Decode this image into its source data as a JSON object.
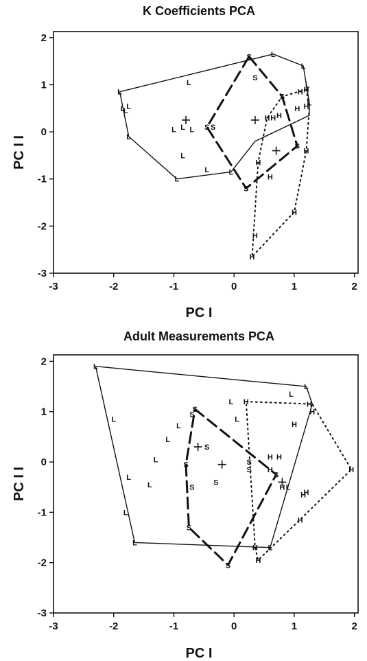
{
  "chart_data": [
    {
      "type": "scatter",
      "title": "K Coefficients PCA",
      "xlabel": "PC  I",
      "ylabel": "PC  I I",
      "xlim": [
        -3,
        2
      ],
      "ylim": [
        -3,
        2
      ],
      "xticks": [
        "-3",
        "-2",
        "-1",
        "0",
        "1",
        "2"
      ],
      "yticks": [
        "2",
        "1",
        "0",
        "-1",
        "-2",
        "-3"
      ],
      "series": [
        {
          "marker": "L",
          "line_style": "solid",
          "points": [
            [
              0.65,
              1.65
            ],
            [
              1.15,
              1.4
            ],
            [
              -0.75,
              1.05
            ],
            [
              -1.9,
              0.85
            ],
            [
              -1.75,
              0.55
            ],
            [
              -1.8,
              0.45
            ],
            [
              -1.85,
              0.5
            ],
            [
              1.22,
              1.0
            ],
            [
              1.25,
              0.62
            ],
            [
              -1.75,
              -0.1
            ],
            [
              -1.0,
              0.05
            ],
            [
              -0.85,
              0.1
            ],
            [
              -0.7,
              0.05
            ],
            [
              -0.85,
              -0.5
            ],
            [
              -0.95,
              -1.0
            ],
            [
              -0.45,
              -0.8
            ],
            [
              -0.05,
              -0.85
            ]
          ],
          "hull": [
            [
              -1.9,
              0.85
            ],
            [
              0.65,
              1.65
            ],
            [
              1.15,
              1.4
            ],
            [
              1.25,
              0.62
            ],
            [
              1.25,
              0.35
            ],
            [
              0.35,
              -0.2
            ],
            [
              -0.05,
              -0.85
            ],
            [
              -0.95,
              -1.0
            ],
            [
              -1.75,
              -0.1
            ],
            [
              -1.9,
              0.85
            ]
          ],
          "centroid": [
            -0.8,
            0.25
          ]
        },
        {
          "marker": "S",
          "line_style": "dashed",
          "points": [
            [
              0.25,
              1.6
            ],
            [
              0.35,
              1.15
            ],
            [
              -0.45,
              0.1
            ],
            [
              -0.35,
              0.1
            ],
            [
              0.8,
              0.75
            ],
            [
              1.05,
              -0.3
            ],
            [
              0.2,
              -1.2
            ]
          ],
          "hull": [
            [
              0.25,
              1.6
            ],
            [
              0.8,
              0.75
            ],
            [
              1.05,
              -0.3
            ],
            [
              0.2,
              -1.2
            ],
            [
              -0.45,
              0.1
            ],
            [
              0.25,
              1.6
            ]
          ],
          "centroid": [
            0.35,
            0.25
          ]
        },
        {
          "marker": "H",
          "line_style": "dotted",
          "points": [
            [
              1.1,
              0.85
            ],
            [
              1.2,
              0.9
            ],
            [
              1.05,
              0.5
            ],
            [
              1.2,
              0.55
            ],
            [
              0.55,
              0.3
            ],
            [
              0.65,
              0.3
            ],
            [
              0.75,
              0.35
            ],
            [
              1.2,
              -0.4
            ],
            [
              0.4,
              -0.65
            ],
            [
              0.6,
              -0.95
            ],
            [
              1.0,
              -1.7
            ],
            [
              0.35,
              -2.2
            ],
            [
              0.3,
              -2.65
            ]
          ],
          "hull": [
            [
              1.2,
              0.9
            ],
            [
              1.25,
              0.5
            ],
            [
              1.2,
              -0.4
            ],
            [
              1.0,
              -1.7
            ],
            [
              0.3,
              -2.65
            ],
            [
              0.4,
              -0.65
            ],
            [
              0.55,
              0.3
            ],
            [
              0.8,
              0.75
            ],
            [
              1.2,
              0.9
            ]
          ],
          "centroid": [
            0.7,
            -0.4
          ]
        }
      ]
    },
    {
      "type": "scatter",
      "title": "Adult Measurements PCA",
      "xlabel": "PC  I",
      "ylabel": "PC  I I",
      "xlim": [
        -3,
        2
      ],
      "ylim": [
        -3,
        2
      ],
      "xticks": [
        "-3",
        "-2",
        "-1",
        "0",
        "1",
        "2"
      ],
      "yticks": [
        "2",
        "1",
        "0",
        "-1",
        "-2",
        "-3"
      ],
      "series": [
        {
          "marker": "L",
          "line_style": "solid",
          "points": [
            [
              -2.3,
              1.9
            ],
            [
              1.2,
              1.5
            ],
            [
              -0.05,
              1.2
            ],
            [
              0.95,
              1.35
            ],
            [
              -2.0,
              0.85
            ],
            [
              -0.92,
              0.72
            ],
            [
              -1.1,
              0.45
            ],
            [
              -1.3,
              0.05
            ],
            [
              -1.4,
              -0.45
            ],
            [
              -1.75,
              -0.3
            ],
            [
              -1.8,
              -1.0
            ],
            [
              -1.65,
              -1.6
            ],
            [
              0.6,
              -1.7
            ],
            [
              0.9,
              -0.5
            ],
            [
              0.05,
              0.85
            ]
          ],
          "hull": [
            [
              -2.3,
              1.9
            ],
            [
              1.2,
              1.5
            ],
            [
              1.3,
              1.15
            ],
            [
              0.6,
              -1.7
            ],
            [
              -1.65,
              -1.6
            ],
            [
              -2.3,
              1.9
            ]
          ],
          "centroid": [
            -0.2,
            -0.05
          ]
        },
        {
          "marker": "S",
          "line_style": "dashed",
          "points": [
            [
              -0.65,
              1.05
            ],
            [
              -0.7,
              0.95
            ],
            [
              -0.45,
              0.3
            ],
            [
              -0.8,
              -0.05
            ],
            [
              -0.7,
              -0.5
            ],
            [
              -0.3,
              -0.4
            ],
            [
              0.25,
              0.0
            ],
            [
              0.25,
              -0.15
            ],
            [
              0.7,
              -0.25
            ],
            [
              -0.75,
              -1.3
            ],
            [
              -0.1,
              -2.05
            ]
          ],
          "hull": [
            [
              -0.65,
              1.05
            ],
            [
              0.7,
              -0.25
            ],
            [
              -0.1,
              -2.05
            ],
            [
              -0.75,
              -1.3
            ],
            [
              -0.8,
              -0.05
            ],
            [
              -0.65,
              1.05
            ]
          ],
          "centroid": [
            -0.6,
            0.3
          ]
        },
        {
          "marker": "H",
          "line_style": "dotted",
          "points": [
            [
              0.2,
              1.2
            ],
            [
              1.25,
              1.15
            ],
            [
              1.3,
              1.0
            ],
            [
              1.0,
              0.75
            ],
            [
              0.6,
              0.1
            ],
            [
              0.75,
              0.1
            ],
            [
              0.6,
              -0.15
            ],
            [
              0.8,
              -0.5
            ],
            [
              1.2,
              -0.6
            ],
            [
              1.15,
              -0.65
            ],
            [
              1.1,
              -1.15
            ],
            [
              0.35,
              -1.7
            ],
            [
              0.4,
              -1.95
            ],
            [
              1.95,
              -0.15
            ]
          ],
          "hull": [
            [
              0.2,
              1.2
            ],
            [
              1.3,
              1.15
            ],
            [
              1.95,
              -0.15
            ],
            [
              1.05,
              -1.2
            ],
            [
              0.4,
              -1.95
            ],
            [
              0.35,
              -1.7
            ],
            [
              0.2,
              1.2
            ]
          ],
          "centroid": [
            0.8,
            -0.4
          ]
        }
      ]
    }
  ]
}
